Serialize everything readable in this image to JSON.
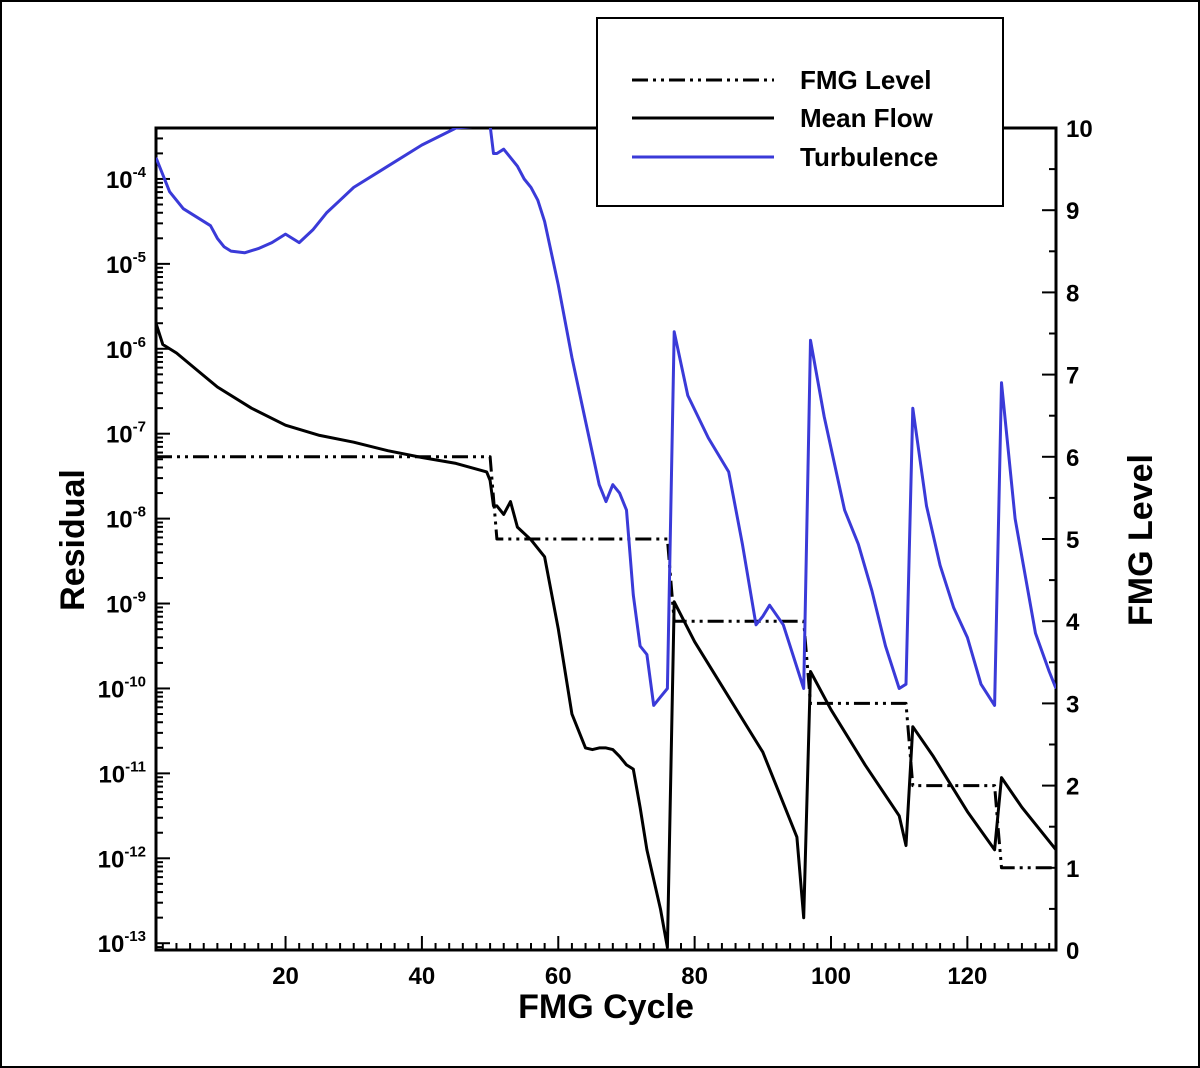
{
  "chart_data": {
    "type": "line",
    "xlabel": "FMG Cycle",
    "ylabel": "Residual",
    "y2label": "FMG Level",
    "xlim": [
      1,
      133
    ],
    "ylim_log10": [
      -13.08,
      -3.4
    ],
    "y2lim": [
      0,
      10
    ],
    "x_ticks": [
      20,
      40,
      60,
      80,
      100,
      120
    ],
    "y_ticks": [
      {
        "base": "10",
        "exp": "-4",
        "log": -4
      },
      {
        "base": "10",
        "exp": "-5",
        "log": -5
      },
      {
        "base": "10",
        "exp": "-6",
        "log": -6
      },
      {
        "base": "10",
        "exp": "-7",
        "log": -7
      },
      {
        "base": "10",
        "exp": "-8",
        "log": -8
      },
      {
        "base": "10",
        "exp": "-9",
        "log": -9
      },
      {
        "base": "10",
        "exp": "-10",
        "log": -10
      },
      {
        "base": "10",
        "exp": "-11",
        "log": -11
      },
      {
        "base": "10",
        "exp": "-12",
        "log": -12
      },
      {
        "base": "10",
        "exp": "-13",
        "log": -13
      }
    ],
    "y2_ticks": [
      "0",
      "1",
      "2",
      "3",
      "4",
      "5",
      "6",
      "7",
      "8",
      "9",
      "10"
    ],
    "legend_position": "top-right",
    "series": [
      {
        "name": "FMG Level",
        "axis": "right",
        "style": "dash-dot-dot",
        "color": "#000000",
        "x": [
          1,
          50,
          50.5,
          51,
          76,
          76.5,
          77,
          96,
          96.5,
          97,
          111,
          111.5,
          112,
          124,
          124.5,
          125,
          133
        ],
        "y": [
          6,
          6,
          5.5,
          5,
          5,
          4.5,
          4,
          4,
          3.5,
          3,
          3,
          2.5,
          2,
          2,
          1.5,
          1,
          1
        ]
      },
      {
        "name": "Mean Flow",
        "axis": "left",
        "style": "solid",
        "color": "#000000",
        "x": [
          1,
          2,
          4,
          7,
          10,
          15,
          20,
          25,
          30,
          35,
          40,
          45,
          49.5,
          50,
          50.5,
          51,
          52,
          53,
          54,
          56,
          58,
          60,
          62,
          64,
          65,
          66,
          67,
          68,
          69,
          70,
          71,
          72,
          73,
          75,
          76,
          77,
          80,
          85,
          90,
          95,
          96,
          97,
          100,
          105,
          110,
          111,
          112,
          115,
          120,
          124,
          125,
          128,
          133
        ],
        "y": [
          -5.7,
          -5.95,
          -6.05,
          -6.25,
          -6.45,
          -6.7,
          -6.9,
          -7.02,
          -7.1,
          -7.2,
          -7.28,
          -7.35,
          -7.45,
          -7.55,
          -7.85,
          -7.85,
          -7.95,
          -7.8,
          -8.1,
          -8.25,
          -8.45,
          -9.3,
          -10.3,
          -10.7,
          -10.72,
          -10.7,
          -10.7,
          -10.72,
          -10.8,
          -10.9,
          -10.95,
          -11.4,
          -11.9,
          -12.6,
          -13.05,
          -8.98,
          -9.45,
          -10.1,
          -10.75,
          -11.75,
          -12.7,
          -9.8,
          -10.25,
          -10.9,
          -11.5,
          -11.85,
          -10.45,
          -10.8,
          -11.45,
          -11.9,
          -11.05,
          -11.4,
          -11.9
        ]
      },
      {
        "name": "Turbulence",
        "axis": "left",
        "style": "solid",
        "color": "#3a3ad8",
        "x": [
          1,
          2,
          3,
          5,
          7,
          9,
          10,
          11,
          12,
          14,
          16,
          18,
          20,
          22,
          24,
          26,
          28,
          30,
          35,
          40,
          45,
          49,
          50,
          50.5,
          51,
          52,
          54,
          55,
          56,
          57,
          58,
          60,
          62,
          64,
          66,
          67,
          68,
          69,
          70,
          71,
          72,
          73,
          74,
          75,
          76,
          77,
          79,
          82,
          85,
          87,
          89,
          90,
          91,
          93,
          96,
          97,
          99,
          102,
          104,
          106,
          108,
          110,
          111,
          112,
          114,
          116,
          117,
          118,
          120,
          122,
          124,
          125,
          127,
          130,
          132,
          133
        ],
        "y": [
          -3.75,
          -3.95,
          -4.15,
          -4.35,
          -4.45,
          -4.55,
          -4.7,
          -4.8,
          -4.85,
          -4.87,
          -4.82,
          -4.75,
          -4.65,
          -4.75,
          -4.6,
          -4.4,
          -4.25,
          -4.1,
          -3.85,
          -3.6,
          -3.4,
          -3.37,
          -3.37,
          -3.7,
          -3.7,
          -3.65,
          -3.85,
          -4.0,
          -4.1,
          -4.25,
          -4.5,
          -5.25,
          -6.1,
          -6.85,
          -7.6,
          -7.8,
          -7.6,
          -7.7,
          -7.9,
          -8.9,
          -9.5,
          -9.6,
          -10.2,
          -10.1,
          -10.0,
          -5.8,
          -6.55,
          -7.05,
          -7.45,
          -8.3,
          -9.25,
          -9.15,
          -9.02,
          -9.25,
          -10.0,
          -5.9,
          -6.8,
          -7.9,
          -8.3,
          -8.85,
          -9.5,
          -10.0,
          -9.95,
          -6.7,
          -7.85,
          -8.55,
          -8.8,
          -9.05,
          -9.4,
          -9.95,
          -10.2,
          -6.4,
          -8.0,
          -9.35,
          -9.8,
          -10.0
        ]
      }
    ]
  }
}
